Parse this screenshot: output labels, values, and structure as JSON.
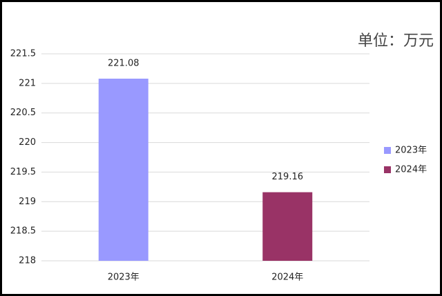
{
  "chart_data": {
    "type": "bar",
    "title": "单位：万元",
    "categories": [
      "2023年",
      "2024年"
    ],
    "values": [
      221.08,
      219.16
    ],
    "colors": [
      "#9999ff",
      "#993366"
    ],
    "ylim": [
      218,
      221.5
    ],
    "yticks": [
      218,
      218.5,
      219,
      219.5,
      220,
      220.5,
      221,
      221.5
    ],
    "grid": true,
    "legend": "right"
  }
}
